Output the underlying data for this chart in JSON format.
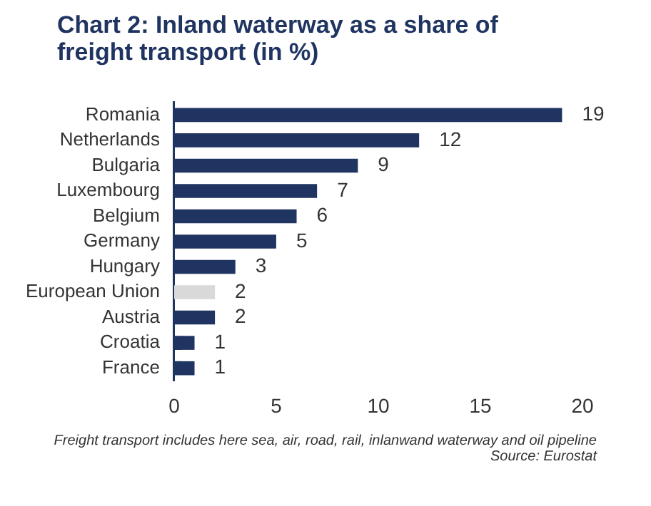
{
  "chart_data": {
    "type": "bar",
    "orientation": "horizontal",
    "title": "Chart 2: Inland waterway as a share of freight transport (in %)",
    "categories": [
      "Romania",
      "Netherlands",
      "Bulgaria",
      "Luxembourg",
      "Belgium",
      "Germany",
      "Hungary",
      "European Union",
      "Austria",
      "Croatia",
      "France"
    ],
    "values": [
      19,
      12,
      9,
      7,
      6,
      5,
      3,
      2,
      2,
      1,
      1
    ],
    "colors": [
      "#1f3461",
      "#1f3461",
      "#1f3461",
      "#1f3461",
      "#1f3461",
      "#1f3461",
      "#1f3461",
      "#d9d9d9",
      "#1f3461",
      "#1f3461",
      "#1f3461"
    ],
    "xlim": [
      0,
      20
    ],
    "xticks": [
      0,
      5,
      10,
      15,
      20
    ],
    "grid": false,
    "legend": false,
    "data_labels": true,
    "annotations": [
      "Freight transport includes here sea, air, road, rail, inlanwand waterway and oil pipeline",
      "Source: Eurostat"
    ]
  }
}
